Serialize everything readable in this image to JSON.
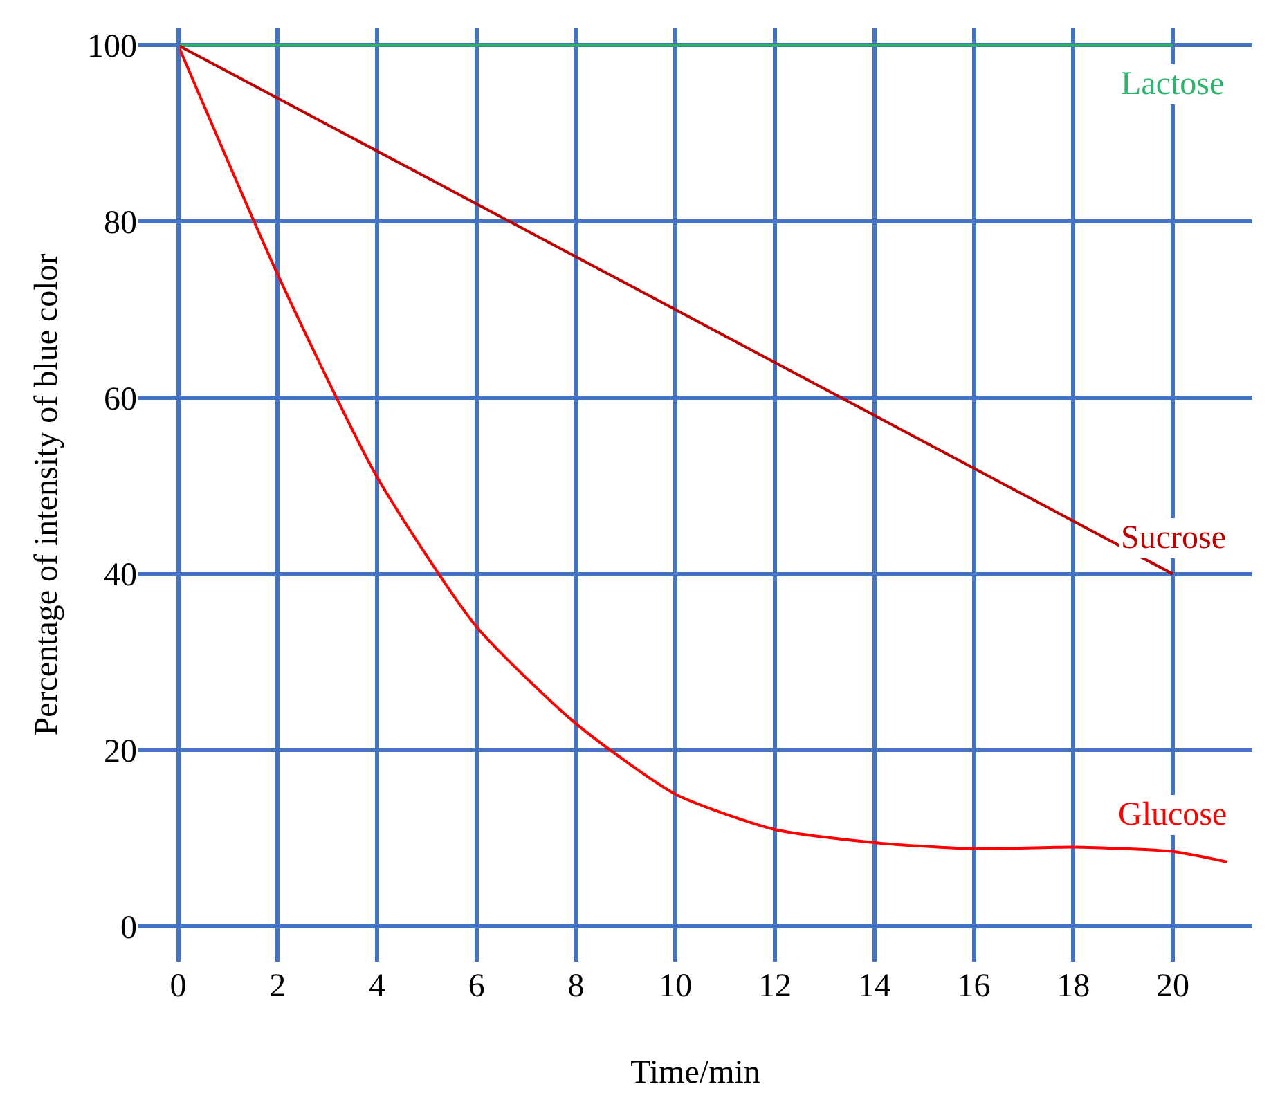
{
  "chart_data": {
    "type": "line",
    "xlabel": "Time/min",
    "ylabel": "Percentage of intensity of blue color",
    "xlim": [
      -0.8,
      21.6
    ],
    "xticks": [
      0,
      2,
      4,
      6,
      8,
      10,
      12,
      14,
      16,
      18,
      20
    ],
    "ylim": [
      -4,
      102
    ],
    "yticks": [
      0,
      20,
      40,
      60,
      80,
      100
    ],
    "grid": true,
    "legend": false,
    "marker": "none",
    "line_style": "solid",
    "series": [
      {
        "name": "Lactose",
        "color": "#2db36b",
        "x": [
          0,
          20
        ],
        "values": [
          100,
          100
        ]
      },
      {
        "name": "Sucrose",
        "color": "#c00000",
        "x": [
          0,
          20
        ],
        "values": [
          100,
          40
        ]
      },
      {
        "name": "Glucose",
        "color": "#ff0000",
        "x": [
          0,
          2,
          4,
          6,
          8,
          10,
          12,
          14,
          16,
          18,
          20,
          21.1
        ],
        "values": [
          100,
          74,
          51,
          34,
          23,
          15,
          11,
          9.5,
          8.8,
          9,
          8.5,
          7.3
        ]
      }
    ]
  }
}
